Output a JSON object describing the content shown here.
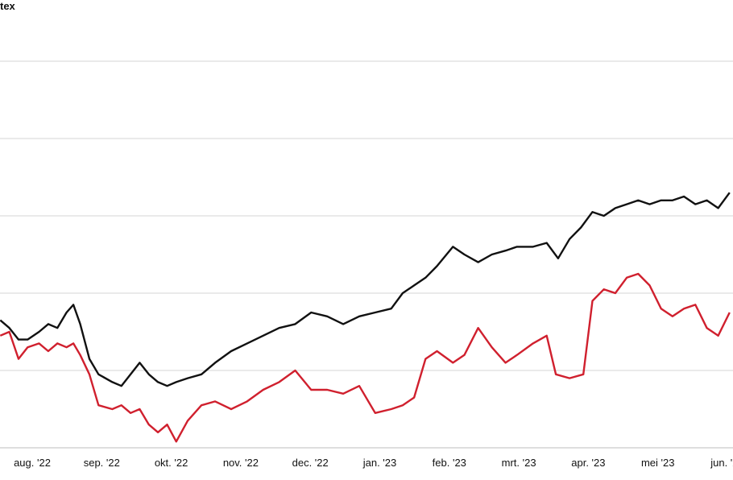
{
  "chart_data": {
    "type": "line",
    "title": "tex",
    "xlabel": "",
    "ylabel": "",
    "x_ticks": [
      "aug. '22",
      "sep. '22",
      "okt. '22",
      "nov. '22",
      "dec. '22",
      "jan. '23",
      "feb. '23",
      "mrt. '23",
      "apr. '23",
      "mei '23",
      "jun. '23"
    ],
    "ylim": [
      0,
      5
    ],
    "y_gridlines": [
      0,
      1,
      2,
      3,
      4,
      5
    ],
    "grid": true,
    "legend": "none",
    "series": [
      {
        "color": "#111111",
        "points": [
          [
            "2022-07-18",
            1.65
          ],
          [
            "2022-07-22",
            1.55
          ],
          [
            "2022-07-26",
            1.4
          ],
          [
            "2022-07-30",
            1.4
          ],
          [
            "2022-08-04",
            1.5
          ],
          [
            "2022-08-08",
            1.6
          ],
          [
            "2022-08-12",
            1.55
          ],
          [
            "2022-08-16",
            1.75
          ],
          [
            "2022-08-19",
            1.85
          ],
          [
            "2022-08-22",
            1.6
          ],
          [
            "2022-08-26",
            1.15
          ],
          [
            "2022-08-30",
            0.95
          ],
          [
            "2022-09-05",
            0.85
          ],
          [
            "2022-09-09",
            0.8
          ],
          [
            "2022-09-13",
            0.95
          ],
          [
            "2022-09-17",
            1.1
          ],
          [
            "2022-09-21",
            0.95
          ],
          [
            "2022-09-25",
            0.85
          ],
          [
            "2022-09-29",
            0.8
          ],
          [
            "2022-10-03",
            0.85
          ],
          [
            "2022-10-08",
            0.9
          ],
          [
            "2022-10-14",
            0.95
          ],
          [
            "2022-10-20",
            1.1
          ],
          [
            "2022-10-27",
            1.25
          ],
          [
            "2022-11-03",
            1.35
          ],
          [
            "2022-11-10",
            1.45
          ],
          [
            "2022-11-17",
            1.55
          ],
          [
            "2022-11-24",
            1.6
          ],
          [
            "2022-12-01",
            1.75
          ],
          [
            "2022-12-08",
            1.7
          ],
          [
            "2022-12-15",
            1.6
          ],
          [
            "2022-12-22",
            1.7
          ],
          [
            "2022-12-29",
            1.75
          ],
          [
            "2023-01-05",
            1.8
          ],
          [
            "2023-01-10",
            2.0
          ],
          [
            "2023-01-15",
            2.1
          ],
          [
            "2023-01-20",
            2.2
          ],
          [
            "2023-01-25",
            2.35
          ],
          [
            "2023-02-01",
            2.6
          ],
          [
            "2023-02-06",
            2.5
          ],
          [
            "2023-02-12",
            2.4
          ],
          [
            "2023-02-18",
            2.5
          ],
          [
            "2023-02-24",
            2.55
          ],
          [
            "2023-03-01",
            2.6
          ],
          [
            "2023-03-08",
            2.6
          ],
          [
            "2023-03-14",
            2.65
          ],
          [
            "2023-03-19",
            2.45
          ],
          [
            "2023-03-24",
            2.7
          ],
          [
            "2023-03-29",
            2.85
          ],
          [
            "2023-04-03",
            3.05
          ],
          [
            "2023-04-08",
            3.0
          ],
          [
            "2023-04-13",
            3.1
          ],
          [
            "2023-04-18",
            3.15
          ],
          [
            "2023-04-23",
            3.2
          ],
          [
            "2023-04-28",
            3.15
          ],
          [
            "2023-05-03",
            3.2
          ],
          [
            "2023-05-08",
            3.2
          ],
          [
            "2023-05-13",
            3.25
          ],
          [
            "2023-05-18",
            3.15
          ],
          [
            "2023-05-23",
            3.2
          ],
          [
            "2023-05-28",
            3.1
          ],
          [
            "2023-06-02",
            3.3
          ]
        ]
      },
      {
        "color": "#d0202e",
        "points": [
          [
            "2022-07-18",
            1.45
          ],
          [
            "2022-07-22",
            1.5
          ],
          [
            "2022-07-26",
            1.15
          ],
          [
            "2022-07-30",
            1.3
          ],
          [
            "2022-08-04",
            1.35
          ],
          [
            "2022-08-08",
            1.25
          ],
          [
            "2022-08-12",
            1.35
          ],
          [
            "2022-08-16",
            1.3
          ],
          [
            "2022-08-19",
            1.35
          ],
          [
            "2022-08-22",
            1.2
          ],
          [
            "2022-08-26",
            0.95
          ],
          [
            "2022-08-30",
            0.55
          ],
          [
            "2022-09-05",
            0.5
          ],
          [
            "2022-09-09",
            0.55
          ],
          [
            "2022-09-13",
            0.45
          ],
          [
            "2022-09-17",
            0.5
          ],
          [
            "2022-09-21",
            0.3
          ],
          [
            "2022-09-25",
            0.2
          ],
          [
            "2022-09-29",
            0.3
          ],
          [
            "2022-10-03",
            0.08
          ],
          [
            "2022-10-08",
            0.35
          ],
          [
            "2022-10-14",
            0.55
          ],
          [
            "2022-10-20",
            0.6
          ],
          [
            "2022-10-27",
            0.5
          ],
          [
            "2022-11-03",
            0.6
          ],
          [
            "2022-11-10",
            0.75
          ],
          [
            "2022-11-17",
            0.85
          ],
          [
            "2022-11-24",
            1.0
          ],
          [
            "2022-12-01",
            0.75
          ],
          [
            "2022-12-08",
            0.75
          ],
          [
            "2022-12-15",
            0.7
          ],
          [
            "2022-12-22",
            0.8
          ],
          [
            "2022-12-29",
            0.45
          ],
          [
            "2023-01-05",
            0.5
          ],
          [
            "2023-01-10",
            0.55
          ],
          [
            "2023-01-15",
            0.65
          ],
          [
            "2023-01-20",
            1.15
          ],
          [
            "2023-01-25",
            1.25
          ],
          [
            "2023-02-01",
            1.1
          ],
          [
            "2023-02-06",
            1.2
          ],
          [
            "2023-02-12",
            1.55
          ],
          [
            "2023-02-18",
            1.3
          ],
          [
            "2023-02-24",
            1.1
          ],
          [
            "2023-03-01",
            1.2
          ],
          [
            "2023-03-08",
            1.35
          ],
          [
            "2023-03-14",
            1.45
          ],
          [
            "2023-03-18",
            0.95
          ],
          [
            "2023-03-24",
            0.9
          ],
          [
            "2023-03-30",
            0.95
          ],
          [
            "2023-04-03",
            1.9
          ],
          [
            "2023-04-08",
            2.05
          ],
          [
            "2023-04-13",
            2.0
          ],
          [
            "2023-04-18",
            2.2
          ],
          [
            "2023-04-23",
            2.25
          ],
          [
            "2023-04-28",
            2.1
          ],
          [
            "2023-05-03",
            1.8
          ],
          [
            "2023-05-08",
            1.7
          ],
          [
            "2023-05-13",
            1.8
          ],
          [
            "2023-05-18",
            1.85
          ],
          [
            "2023-05-23",
            1.55
          ],
          [
            "2023-05-28",
            1.45
          ],
          [
            "2023-06-02",
            1.75
          ]
        ]
      }
    ]
  }
}
